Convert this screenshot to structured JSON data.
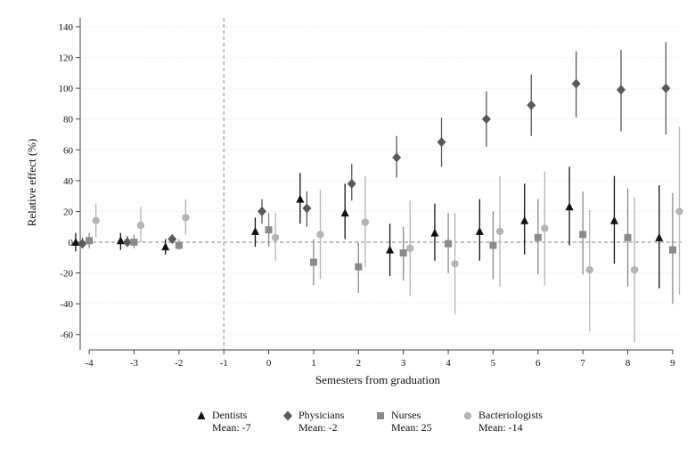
{
  "chart_data": {
    "type": "scatter",
    "xlabel": "Semesters from graduation",
    "ylabel": "Relative effect (%)",
    "xlim": [
      -4,
      9
    ],
    "ylim": [
      -70,
      140
    ],
    "x_ticks": [
      -4,
      -3,
      -2,
      -1,
      0,
      1,
      2,
      3,
      4,
      5,
      6,
      7,
      8,
      9
    ],
    "y_ticks": [
      -60,
      -40,
      -20,
      0,
      20,
      40,
      60,
      80,
      100,
      120,
      140
    ],
    "grid": true,
    "reference_lines": {
      "x": -1,
      "y": 0
    },
    "legend_position": "bottom",
    "series": [
      {
        "name": "Dentists",
        "mean_label": "Mean: -7",
        "marker": "triangle",
        "color": "#111111",
        "offset": -0.3,
        "x": [
          -4,
          -3,
          -2,
          0,
          1,
          2,
          3,
          4,
          5,
          6,
          7,
          8,
          9
        ],
        "y": [
          0,
          1,
          -3,
          7,
          28,
          19,
          -5,
          6,
          7,
          14,
          23,
          14,
          3
        ],
        "ci_low": [
          -6,
          -5,
          -8,
          -3,
          12,
          2,
          -22,
          -12,
          -12,
          -8,
          -2,
          -14,
          -30
        ],
        "ci_high": [
          6,
          6,
          2,
          16,
          45,
          38,
          12,
          25,
          28,
          38,
          49,
          43,
          37
        ]
      },
      {
        "name": "Physicians",
        "mean_label": "Mean: -2",
        "marker": "diamond",
        "color": "#5a5a5a",
        "offset": -0.15,
        "x": [
          -4,
          -3,
          -2,
          0,
          1,
          2,
          3,
          4,
          5,
          6,
          7,
          8,
          9
        ],
        "y": [
          -1,
          0,
          2,
          20,
          22,
          38,
          55,
          65,
          80,
          89,
          103,
          99,
          100
        ],
        "ci_low": [
          -4,
          -3,
          -1,
          12,
          10,
          27,
          42,
          49,
          62,
          69,
          81,
          72,
          70
        ],
        "ci_high": [
          3,
          4,
          5,
          28,
          33,
          51,
          69,
          81,
          98,
          109,
          124,
          125,
          130
        ]
      },
      {
        "name": "Nurses",
        "mean_label": "Mean: 25",
        "marker": "square",
        "color": "#8a8a8a",
        "offset": 0,
        "x": [
          -4,
          -3,
          -2,
          0,
          1,
          2,
          3,
          4,
          5,
          6,
          7,
          8,
          9
        ],
        "y": [
          1,
          0,
          -2,
          8,
          -13,
          -16,
          -7,
          -1,
          -2,
          3,
          5,
          3,
          -5
        ],
        "ci_low": [
          -4,
          -4,
          -5,
          -3,
          -28,
          -33,
          -25,
          -20,
          -24,
          -21,
          -21,
          -29,
          -40
        ],
        "ci_high": [
          6,
          5,
          2,
          19,
          2,
          0,
          10,
          19,
          20,
          28,
          33,
          35,
          32
        ]
      },
      {
        "name": "Bacteriologists",
        "mean_label": "Mean: -14",
        "marker": "circle",
        "color": "#b5b5b5",
        "offset": 0.15,
        "x": [
          -4,
          -3,
          -2,
          0,
          1,
          2,
          3,
          4,
          5,
          6,
          7,
          8,
          9
        ],
        "y": [
          14,
          11,
          16,
          3,
          5,
          13,
          -4,
          -14,
          7,
          9,
          -18,
          -18,
          20
        ],
        "ci_low": [
          3,
          0,
          5,
          -12,
          -24,
          -16,
          -35,
          -47,
          -29,
          -28,
          -58,
          -65,
          -34
        ],
        "ci_high": [
          25,
          23,
          28,
          19,
          34,
          43,
          27,
          19,
          43,
          46,
          21,
          29,
          75
        ]
      }
    ]
  }
}
